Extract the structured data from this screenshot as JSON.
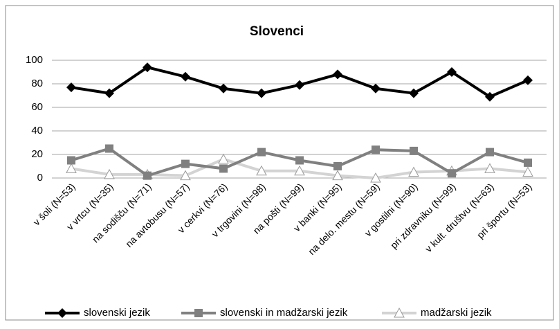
{
  "chart_data": {
    "type": "line",
    "title": "Slovenci",
    "categories": [
      "v šoli (N=53)",
      "v vrtcu (N=35)",
      "na sodišču (N=71)",
      "na avtobusu (N=57)",
      "v cerkvi (N=76)",
      "v trgovini (N=98)",
      "na pošti (N=99)",
      "v banki (N=95)",
      "na delo. mestu (N=59)",
      "v gostilni (N=90)",
      "pri zdravniku (N=99)",
      "v kult. društvu (N=63)",
      "pri športu (N=53)"
    ],
    "series": [
      {
        "name": "slovenski jezik",
        "color": "#000000",
        "marker": "diamond",
        "values": [
          77,
          72,
          94,
          86,
          76,
          72,
          79,
          88,
          76,
          72,
          90,
          69,
          83
        ]
      },
      {
        "name": "slovenski in madžarski jezik",
        "color": "#808080",
        "marker": "square",
        "values": [
          15,
          25,
          2,
          12,
          8,
          22,
          15,
          10,
          24,
          23,
          4,
          22,
          13
        ]
      },
      {
        "name": "madžarski jezik",
        "color": "#d3d3d3",
        "marker": "triangle",
        "values": [
          8,
          3,
          3,
          2,
          16,
          6,
          6,
          2,
          0,
          5,
          6,
          8,
          5
        ]
      }
    ],
    "ylim": [
      0,
      100
    ],
    "yticks": [
      0,
      20,
      40,
      60,
      80,
      100
    ],
    "grid": true,
    "legend": "bottom"
  }
}
